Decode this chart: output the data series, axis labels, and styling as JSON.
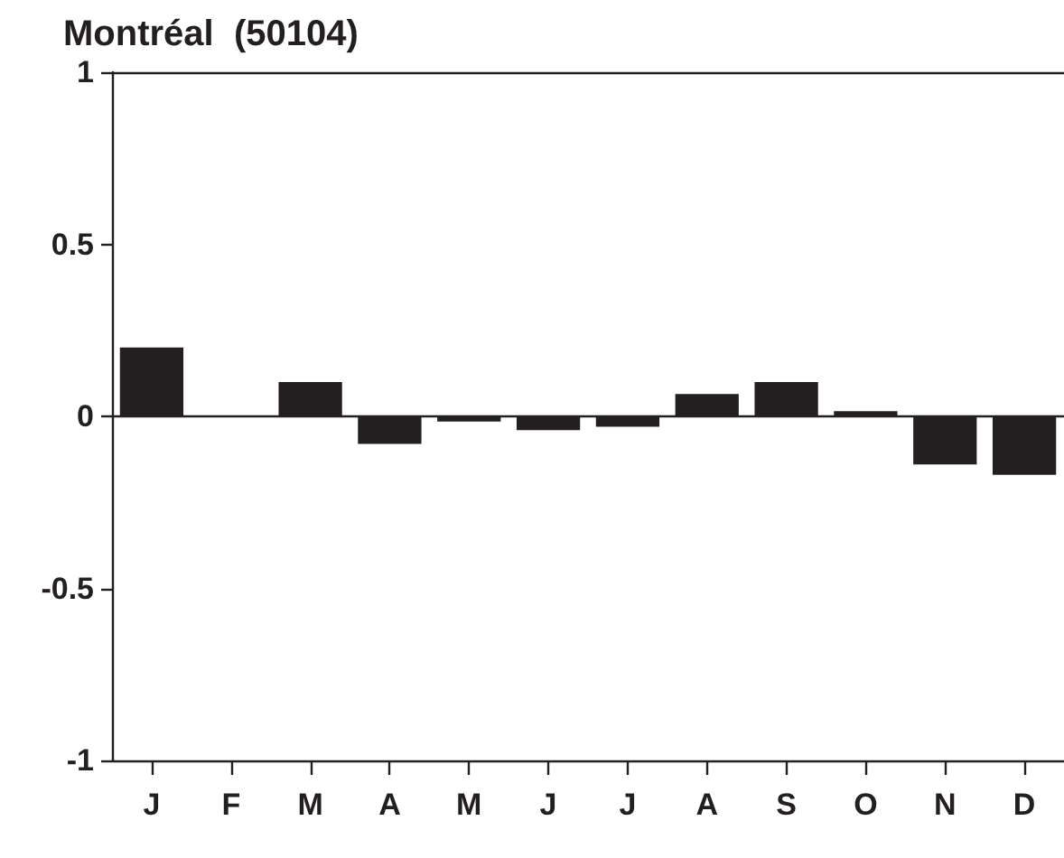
{
  "chart_data": {
    "type": "bar",
    "title": "Montréal  (50104)",
    "categories": [
      "J",
      "F",
      "M",
      "A",
      "M",
      "J",
      "J",
      "A",
      "S",
      "O",
      "N",
      "D"
    ],
    "values": [
      0.2,
      0,
      0.1,
      -0.08,
      -0.015,
      -0.04,
      -0.03,
      0.065,
      0.1,
      0.015,
      -0.14,
      -0.17
    ],
    "color": "#231f20",
    "ylim": [
      -1,
      1
    ],
    "yticks": [
      -1,
      -0.5,
      0,
      0.5,
      1
    ]
  }
}
